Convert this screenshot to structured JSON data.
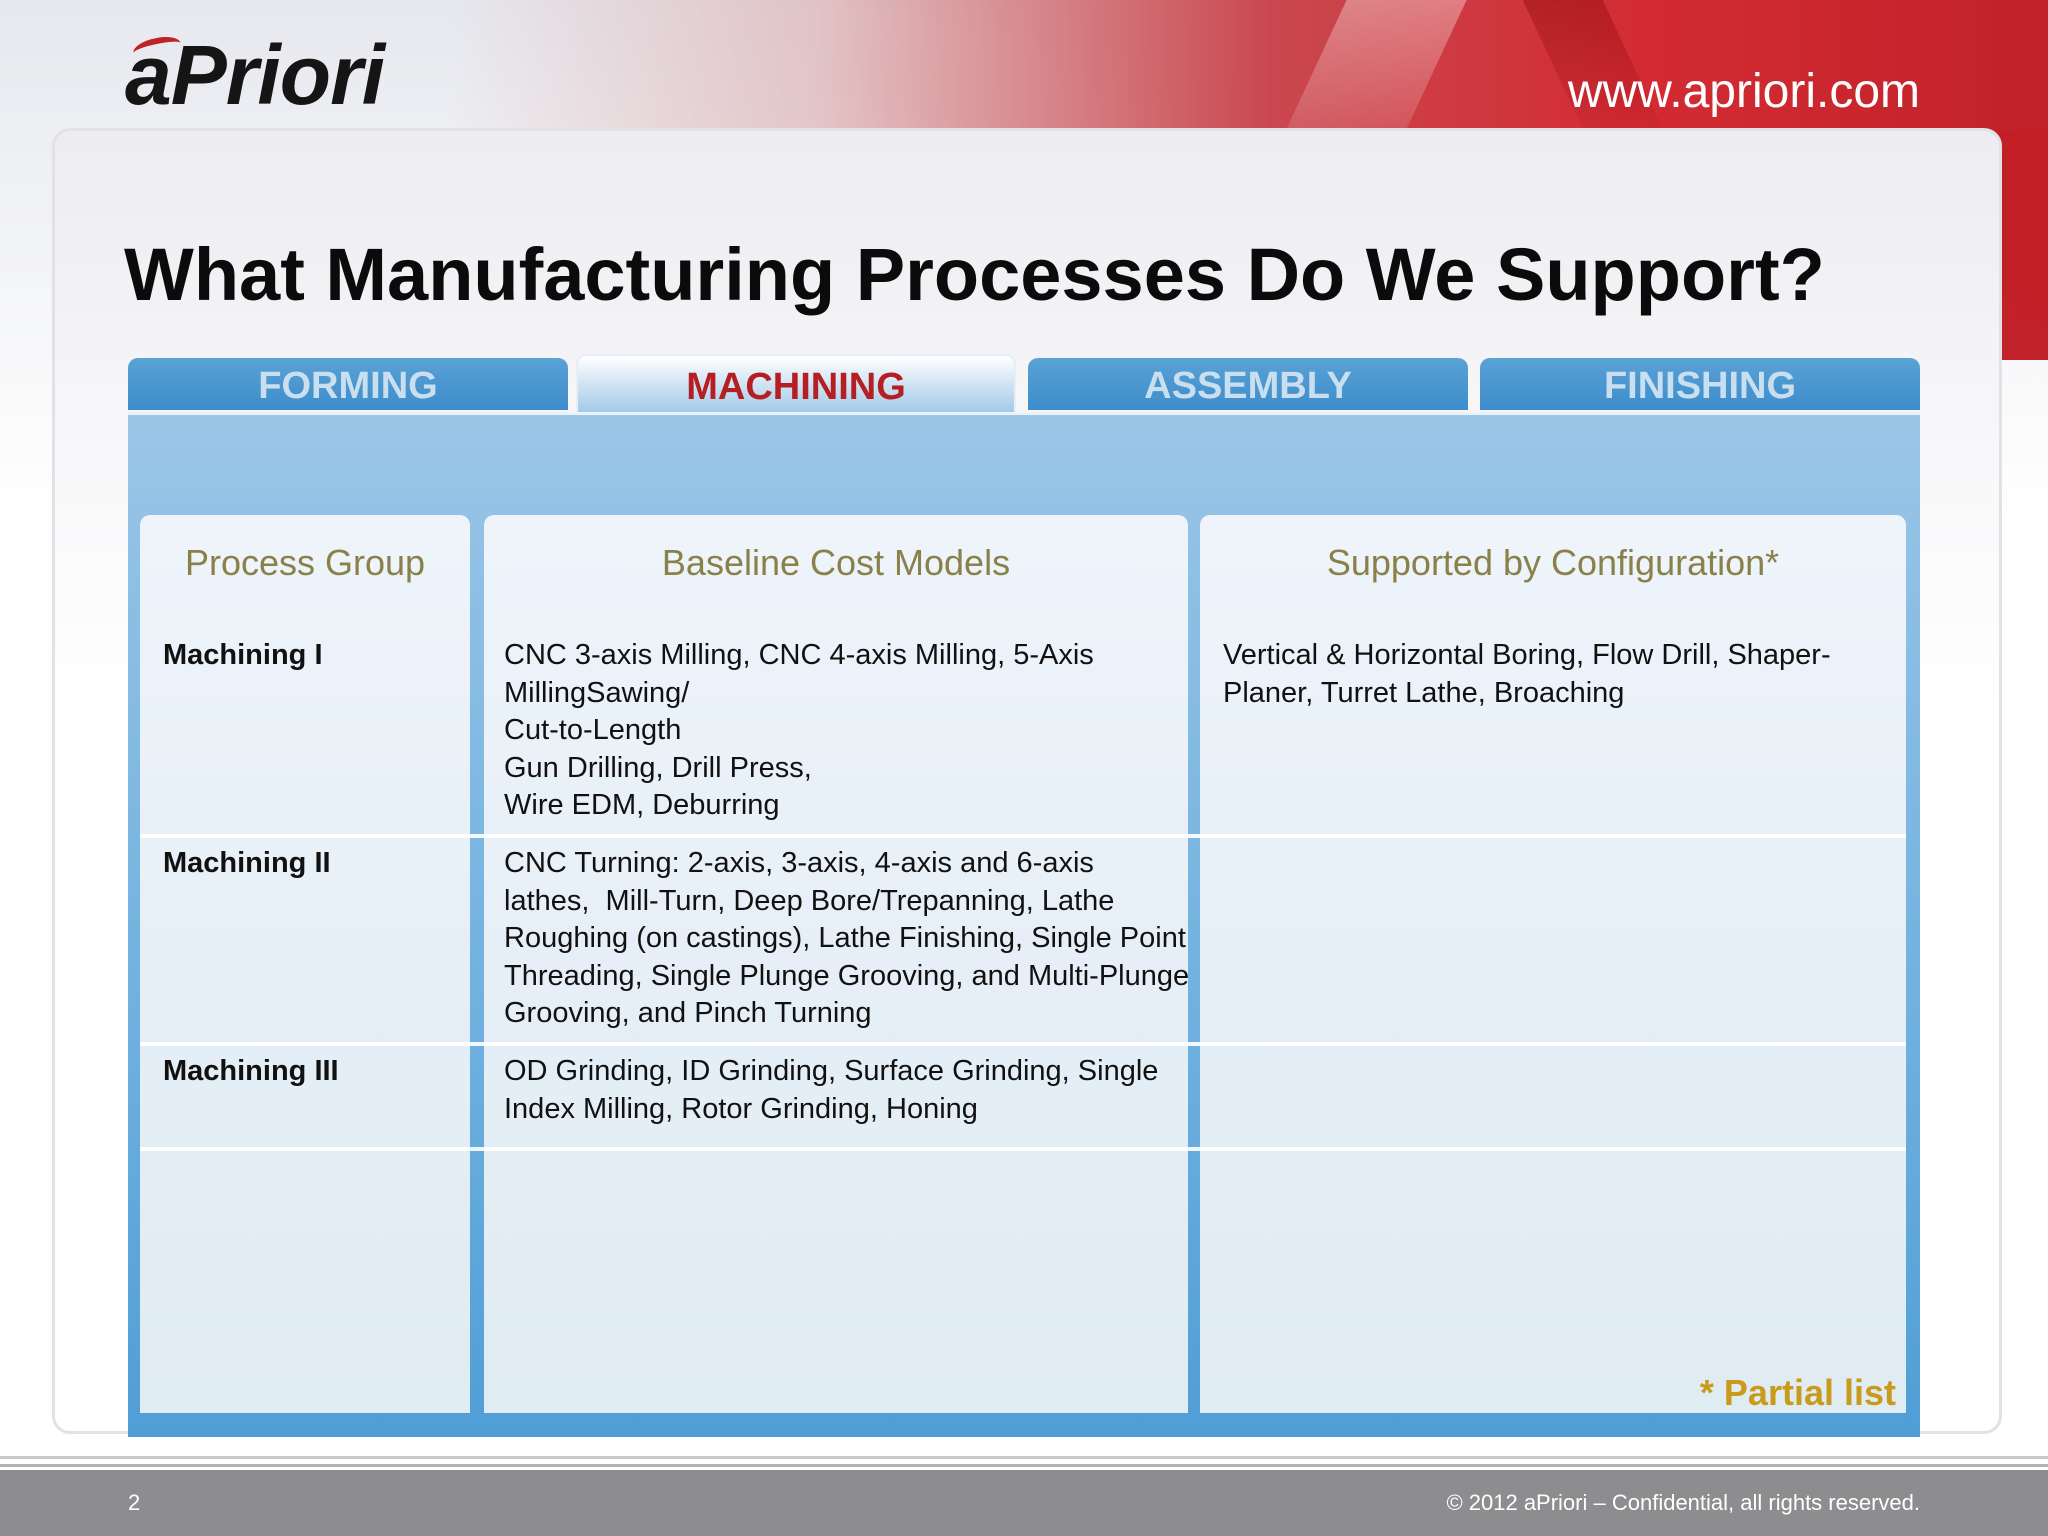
{
  "header": {
    "logo_text": "aPriori",
    "website": "www.apriori.com"
  },
  "slide": {
    "title": "What Manufacturing Processes Do We Support?"
  },
  "tabs": [
    {
      "label": "FORMING",
      "active": false
    },
    {
      "label": "MACHINING",
      "active": true
    },
    {
      "label": "ASSEMBLY",
      "active": false
    },
    {
      "label": "FINISHING",
      "active": false
    }
  ],
  "table": {
    "headers": [
      "Process Group",
      "Baseline Cost Models",
      "Supported by Configuration*"
    ],
    "rows": [
      {
        "group": "Machining I",
        "baseline": [
          "CNC 3-axis Milling, CNC 4-axis Milling, 5-Axis",
          "MillingSawing/",
          "Cut-to-Length",
          "Gun Drilling, Drill Press,",
          "Wire EDM, Deburring"
        ],
        "configuration": [
          "Vertical & Horizontal Boring, Flow Drill, Shaper-",
          "Planer, Turret Lathe, Broaching"
        ]
      },
      {
        "group": "Machining II",
        "baseline": [
          "CNC Turning: 2-axis, 3-axis, 4-axis and 6-axis",
          "lathes,  Mill-Turn, Deep Bore/Trepanning, Lathe",
          "Roughing (on castings), Lathe Finishing, Single Point",
          "Threading, Single Plunge Grooving, and Multi-Plunge",
          "Grooving, and Pinch Turning"
        ],
        "configuration": []
      },
      {
        "group": "Machining III",
        "baseline": [
          "OD Grinding, ID Grinding, Surface Grinding, Single",
          "Index Milling, Rotor Grinding, Honing"
        ],
        "configuration": []
      }
    ],
    "note": "* Partial list"
  },
  "footer": {
    "page_number": "2",
    "copyright": "© 2012 aPriori – Confidential, all rights reserved."
  },
  "colors": {
    "tab_active_text": "#b51e22",
    "tab_inactive_bg": "#3d8ccb",
    "header_text": "#8a8049",
    "note_text": "#c99a1b",
    "brand_red": "#c0222a"
  }
}
